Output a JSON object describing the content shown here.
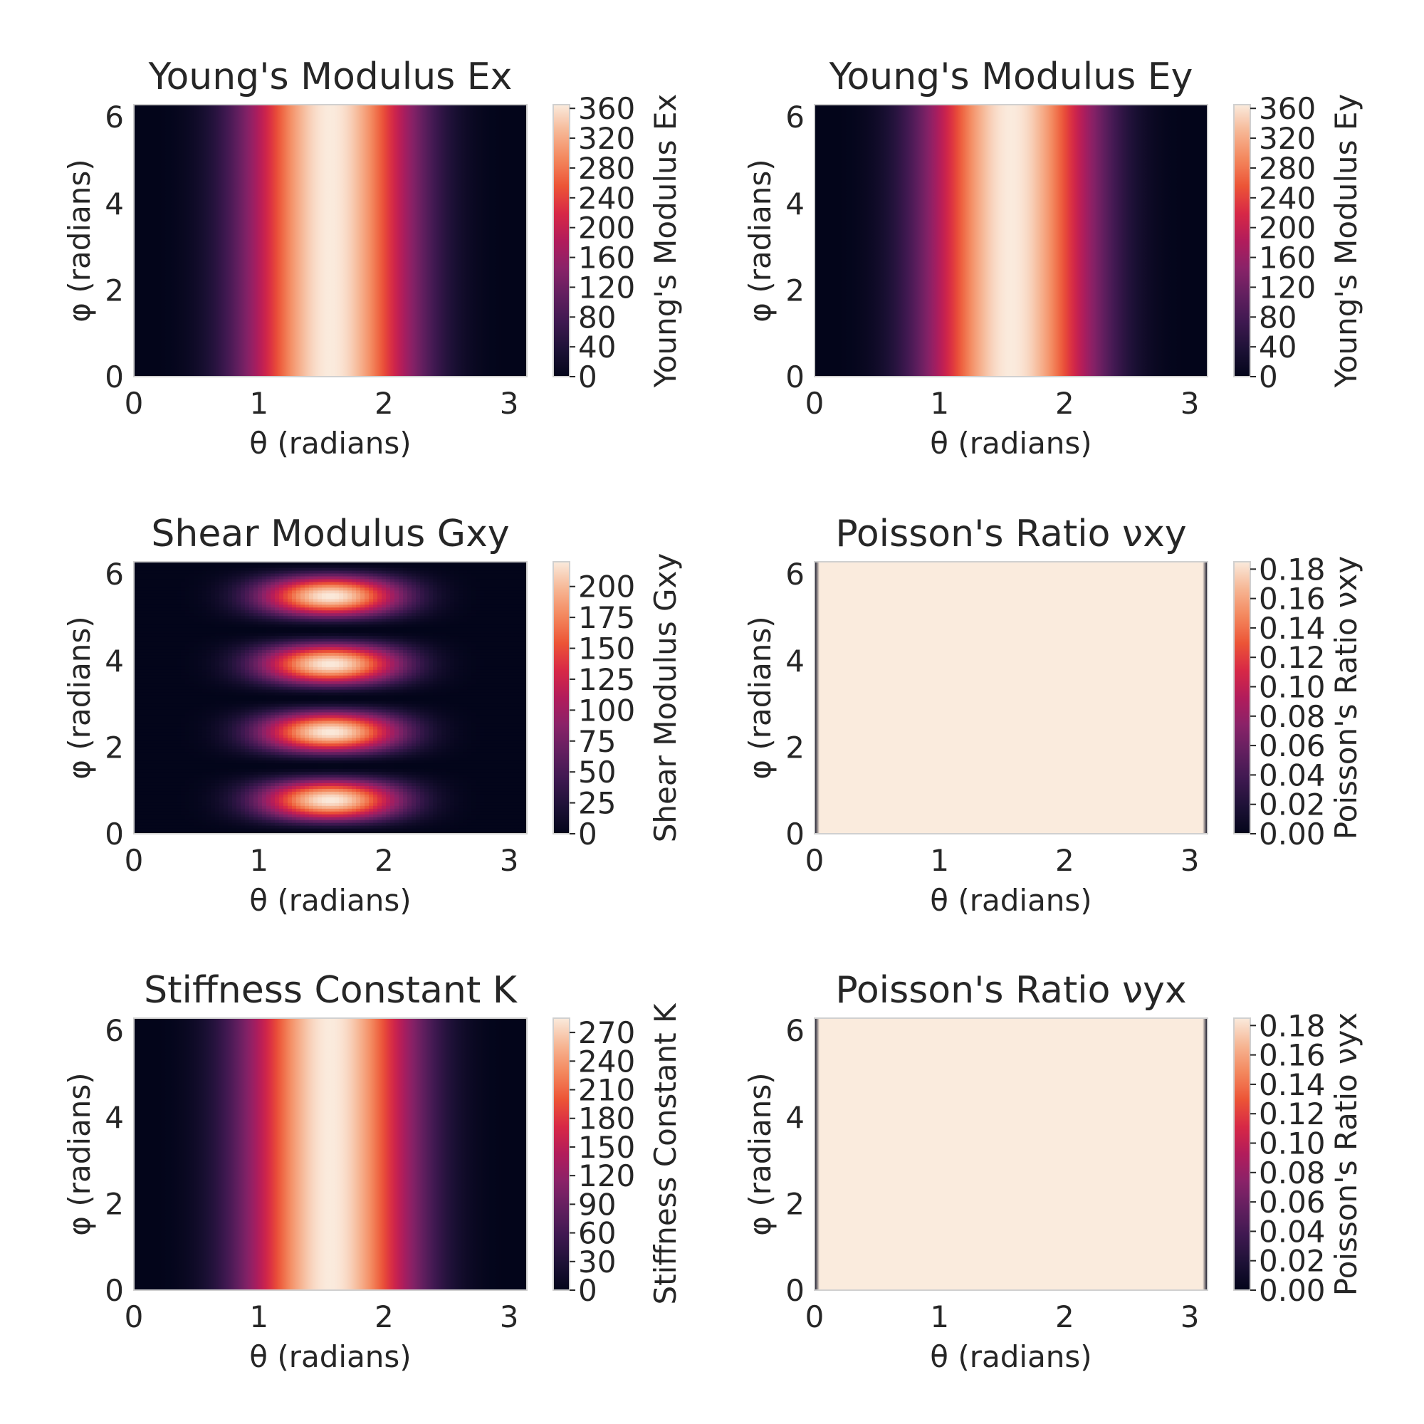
{
  "chart_data": [
    {
      "type": "heatmap",
      "title": "Young's Modulus Ex",
      "xlabel": "θ (radians)",
      "ylabel": "φ (radians)",
      "colorbar_label": "Young's Modulus Ex",
      "x_ticks": [
        "0",
        "1",
        "2",
        "3"
      ],
      "y_ticks": [
        "0",
        "2",
        "4",
        "6"
      ],
      "xlim": [
        0,
        3.1416
      ],
      "ylim": [
        0,
        6.2832
      ],
      "colorbar_ticks": [
        "0",
        "40",
        "80",
        "120",
        "160",
        "200",
        "240",
        "280",
        "320",
        "360"
      ],
      "zlim": [
        0,
        365
      ],
      "pattern": "bands_theta",
      "z_function": "365 * sin(θ)^4 (constant in φ)",
      "colormap": "rocket"
    },
    {
      "type": "heatmap",
      "title": "Young's Modulus Ey",
      "xlabel": "θ (radians)",
      "ylabel": "φ (radians)",
      "colorbar_label": "Young's Modulus Ey",
      "x_ticks": [
        "0",
        "1",
        "2",
        "3"
      ],
      "y_ticks": [
        "0",
        "2",
        "4",
        "6"
      ],
      "xlim": [
        0,
        3.1416
      ],
      "ylim": [
        0,
        6.2832
      ],
      "colorbar_ticks": [
        "0",
        "40",
        "80",
        "120",
        "160",
        "200",
        "240",
        "280",
        "320",
        "360"
      ],
      "zlim": [
        0,
        365
      ],
      "pattern": "bands_theta",
      "z_function": "365 * sin(θ)^4 (constant in φ)",
      "colormap": "rocket"
    },
    {
      "type": "heatmap",
      "title": "Shear Modulus Gxy",
      "xlabel": "θ (radians)",
      "ylabel": "φ (radians)",
      "colorbar_label": "Shear Modulus Gxy",
      "x_ticks": [
        "0",
        "1",
        "2",
        "3"
      ],
      "y_ticks": [
        "0",
        "2",
        "4",
        "6"
      ],
      "xlim": [
        0,
        3.1416
      ],
      "ylim": [
        0,
        6.2832
      ],
      "colorbar_ticks": [
        "0",
        "25",
        "50",
        "75",
        "100",
        "125",
        "150",
        "175",
        "200"
      ],
      "zlim": [
        0,
        220
      ],
      "pattern": "blobs",
      "z_function": "220 * sin(θ)^6 * sin(2φ)^2",
      "colormap": "rocket"
    },
    {
      "type": "heatmap",
      "title": "Poisson's Ratio νxy",
      "xlabel": "θ (radians)",
      "ylabel": "φ (radians)",
      "colorbar_label": "Poisson's Ratio νxy",
      "x_ticks": [
        "0",
        "1",
        "2",
        "3"
      ],
      "y_ticks": [
        "0",
        "2",
        "4",
        "6"
      ],
      "xlim": [
        0,
        3.1416
      ],
      "ylim": [
        0,
        6.2832
      ],
      "colorbar_ticks": [
        "0.00",
        "0.02",
        "0.04",
        "0.06",
        "0.08",
        "0.10",
        "0.12",
        "0.14",
        "0.16",
        "0.18"
      ],
      "zlim": [
        0,
        0.185
      ],
      "pattern": "uniform_edges",
      "z_function": "≈0.185 everywhere except near θ = 0 and θ = π",
      "colormap": "rocket"
    },
    {
      "type": "heatmap",
      "title": "Stiffness Constant K",
      "xlabel": "θ (radians)",
      "ylabel": "φ (radians)",
      "colorbar_label": "Stiffness Constant K",
      "x_ticks": [
        "0",
        "1",
        "2",
        "3"
      ],
      "y_ticks": [
        "0",
        "2",
        "4",
        "6"
      ],
      "xlim": [
        0,
        3.1416
      ],
      "ylim": [
        0,
        6.2832
      ],
      "colorbar_ticks": [
        "0",
        "30",
        "60",
        "90",
        "120",
        "150",
        "180",
        "210",
        "240",
        "270"
      ],
      "zlim": [
        0,
        285
      ],
      "pattern": "bands_theta",
      "z_function": "285 * sin(θ)^4 (constant in φ)",
      "colormap": "rocket"
    },
    {
      "type": "heatmap",
      "title": "Poisson's Ratio νyx",
      "xlabel": "θ (radians)",
      "ylabel": "φ (radians)",
      "colorbar_label": "Poisson's Ratio νyx",
      "x_ticks": [
        "0",
        "1",
        "2",
        "3"
      ],
      "y_ticks": [
        "0",
        "2",
        "4",
        "6"
      ],
      "xlim": [
        0,
        3.1416
      ],
      "ylim": [
        0,
        6.2832
      ],
      "colorbar_ticks": [
        "0.00",
        "0.02",
        "0.04",
        "0.06",
        "0.08",
        "0.10",
        "0.12",
        "0.14",
        "0.16",
        "0.18"
      ],
      "zlim": [
        0,
        0.185
      ],
      "pattern": "uniform_edges",
      "z_function": "≈0.185 everywhere except near θ = 0 and θ = π",
      "colormap": "rocket"
    }
  ]
}
